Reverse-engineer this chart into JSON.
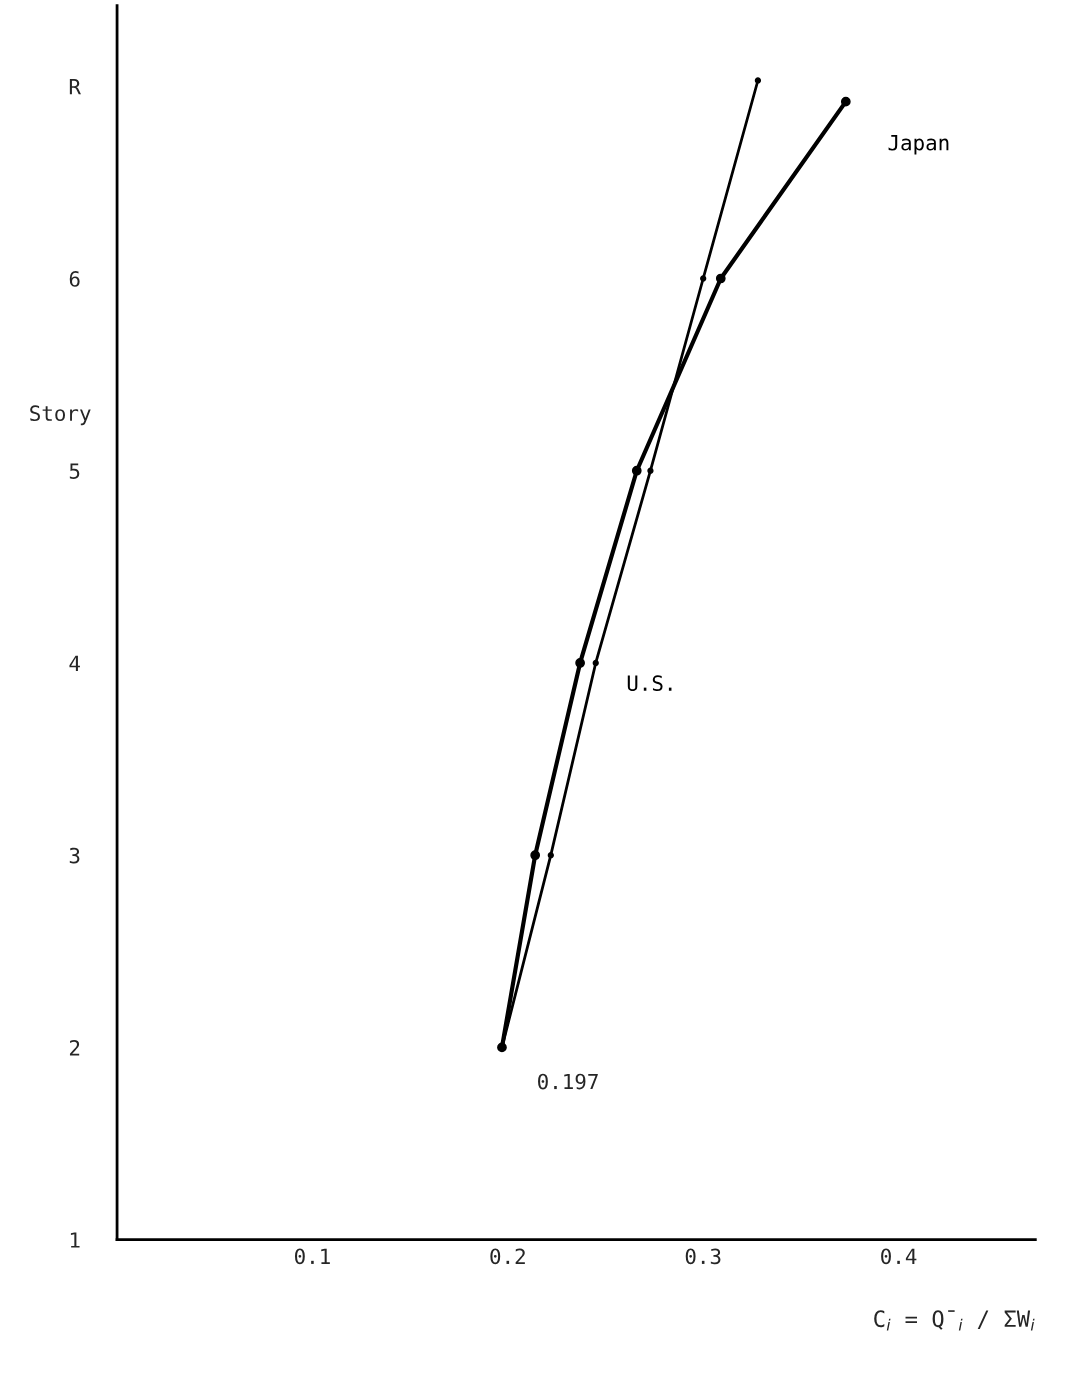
{
  "chart_data": {
    "type": "line",
    "xlabel": "C$_{i}$ = Q̄$_{i}$ / ΣW$_{i}$",
    "ylabel": "Story",
    "series": [
      {
        "name": "Japan",
        "color": "#000000",
        "x": [
          0.197,
          0.214,
          0.237,
          0.266,
          0.309,
          0.373
        ],
        "values": [
          2,
          3,
          4,
          5,
          6,
          6.92
        ]
      },
      {
        "name": "U.S.",
        "color": "#000000",
        "x": [
          0.197,
          0.222,
          0.245,
          0.273,
          0.3,
          0.328
        ],
        "values": [
          2,
          3,
          4,
          5,
          6,
          7.03
        ]
      }
    ],
    "annotations": [
      {
        "text": "0.197",
        "x": 0.197,
        "y": 2
      }
    ],
    "xlim": [
      0,
      0.47
    ],
    "xticks": [
      0.1,
      0.2,
      0.3,
      0.4
    ],
    "ylim": [
      1,
      7.42
    ],
    "yticks": [
      1,
      2,
      3,
      4,
      5,
      6,
      {
        "value": 7,
        "label": "R"
      }
    ],
    "grid": false,
    "legend": false,
    "marker": "circle",
    "line_style": "solid"
  }
}
